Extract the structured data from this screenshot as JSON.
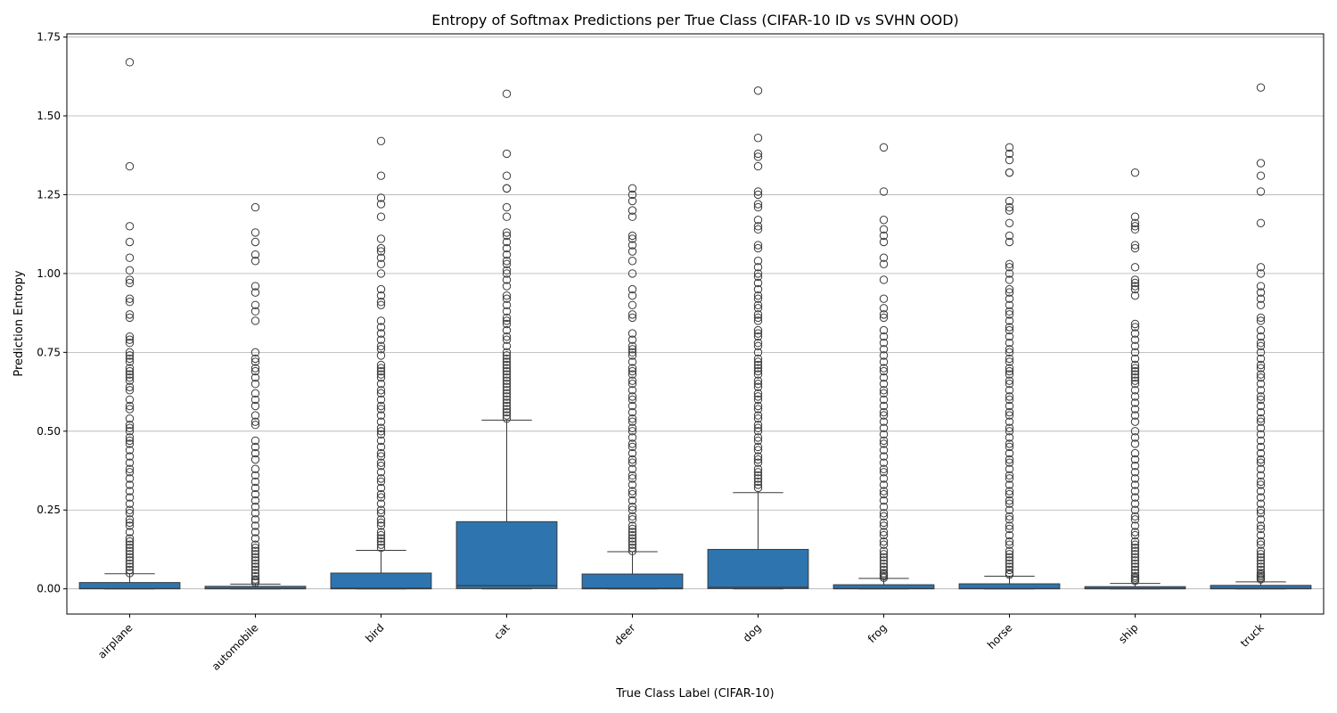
{
  "chart_data": {
    "type": "box",
    "title": "Entropy of Softmax Predictions per True Class (CIFAR-10 ID vs SVHN OOD)",
    "xlabel": "True Class Label (CIFAR-10)",
    "ylabel": "Prediction Entropy",
    "ylim": [
      -0.08,
      1.76
    ],
    "yticks": [
      0.0,
      0.25,
      0.5,
      0.75,
      1.0,
      1.25,
      1.5,
      1.75
    ],
    "ytick_labels": [
      "0.00",
      "0.25",
      "0.50",
      "0.75",
      "1.00",
      "1.25",
      "1.50",
      "1.75"
    ],
    "grid": "horizontal",
    "box_color": "#2e75b0",
    "edge_color": "#3a3a3a",
    "categories": [
      "airplane",
      "automobile",
      "bird",
      "cat",
      "deer",
      "dog",
      "frog",
      "horse",
      "ship",
      "truck"
    ],
    "boxes": [
      {
        "category": "airplane",
        "q1": 0.0,
        "median": 0.001,
        "q3": 0.02,
        "whisker_low": 0.0,
        "whisker_high": 0.048,
        "outliers": [
          1.67,
          1.34,
          1.15,
          1.1,
          1.05,
          1.01,
          0.98,
          0.97,
          0.92,
          0.91,
          0.87,
          0.86,
          0.8,
          0.79,
          0.78,
          0.75,
          0.74,
          0.73,
          0.72,
          0.7,
          0.69,
          0.68,
          0.67,
          0.66,
          0.64,
          0.63,
          0.6,
          0.58,
          0.57,
          0.54,
          0.52,
          0.51,
          0.5,
          0.48,
          0.47,
          0.46,
          0.44,
          0.42,
          0.4,
          0.38,
          0.37,
          0.35,
          0.33,
          0.31,
          0.29,
          0.27,
          0.25,
          0.24,
          0.22,
          0.21,
          0.2,
          0.18,
          0.16,
          0.15,
          0.14,
          0.13,
          0.12,
          0.11,
          0.1,
          0.09,
          0.08,
          0.07,
          0.06,
          0.05
        ]
      },
      {
        "category": "automobile",
        "q1": 0.0,
        "median": 0.001,
        "q3": 0.008,
        "whisker_low": 0.0,
        "whisker_high": 0.015,
        "outliers": [
          1.21,
          1.13,
          1.1,
          1.06,
          1.04,
          0.96,
          0.94,
          0.9,
          0.88,
          0.85,
          0.75,
          0.73,
          0.72,
          0.7,
          0.69,
          0.67,
          0.65,
          0.62,
          0.6,
          0.58,
          0.55,
          0.53,
          0.52,
          0.47,
          0.45,
          0.43,
          0.41,
          0.38,
          0.36,
          0.34,
          0.32,
          0.3,
          0.28,
          0.26,
          0.24,
          0.22,
          0.2,
          0.18,
          0.16,
          0.14,
          0.13,
          0.12,
          0.11,
          0.1,
          0.09,
          0.08,
          0.07,
          0.06,
          0.05,
          0.04,
          0.03,
          0.025,
          0.02
        ]
      },
      {
        "category": "bird",
        "q1": 0.0,
        "median": 0.002,
        "q3": 0.05,
        "whisker_low": 0.0,
        "whisker_high": 0.122,
        "outliers": [
          1.42,
          1.31,
          1.24,
          1.22,
          1.18,
          1.11,
          1.08,
          1.07,
          1.05,
          1.03,
          1.0,
          0.95,
          0.93,
          0.91,
          0.9,
          0.85,
          0.83,
          0.81,
          0.79,
          0.77,
          0.76,
          0.74,
          0.71,
          0.7,
          0.69,
          0.68,
          0.67,
          0.65,
          0.63,
          0.62,
          0.6,
          0.58,
          0.57,
          0.55,
          0.53,
          0.51,
          0.5,
          0.49,
          0.47,
          0.45,
          0.43,
          0.42,
          0.4,
          0.39,
          0.37,
          0.35,
          0.34,
          0.32,
          0.3,
          0.29,
          0.27,
          0.25,
          0.24,
          0.22,
          0.21,
          0.2,
          0.18,
          0.17,
          0.16,
          0.15,
          0.14,
          0.13
        ]
      },
      {
        "category": "cat",
        "q1": 0.001,
        "median": 0.01,
        "q3": 0.213,
        "whisker_low": 0.0,
        "whisker_high": 0.535,
        "outliers": [
          1.57,
          1.38,
          1.31,
          1.27,
          1.27,
          1.21,
          1.18,
          1.13,
          1.12,
          1.1,
          1.08,
          1.06,
          1.04,
          1.03,
          1.01,
          1.0,
          0.98,
          0.96,
          0.93,
          0.92,
          0.9,
          0.88,
          0.86,
          0.85,
          0.84,
          0.82,
          0.8,
          0.79,
          0.77,
          0.75,
          0.74,
          0.73,
          0.72,
          0.71,
          0.7,
          0.69,
          0.68,
          0.67,
          0.66,
          0.65,
          0.64,
          0.63,
          0.62,
          0.61,
          0.6,
          0.59,
          0.58,
          0.57,
          0.56,
          0.55,
          0.54
        ]
      },
      {
        "category": "deer",
        "q1": 0.0,
        "median": 0.002,
        "q3": 0.047,
        "whisker_low": 0.0,
        "whisker_high": 0.118,
        "outliers": [
          1.27,
          1.25,
          1.23,
          1.2,
          1.18,
          1.12,
          1.11,
          1.09,
          1.07,
          1.04,
          1.0,
          0.95,
          0.93,
          0.9,
          0.87,
          0.86,
          0.81,
          0.79,
          0.77,
          0.76,
          0.75,
          0.74,
          0.72,
          0.7,
          0.69,
          0.68,
          0.66,
          0.65,
          0.63,
          0.61,
          0.6,
          0.58,
          0.56,
          0.54,
          0.53,
          0.51,
          0.5,
          0.48,
          0.46,
          0.45,
          0.43,
          0.41,
          0.4,
          0.38,
          0.36,
          0.35,
          0.33,
          0.31,
          0.3,
          0.28,
          0.26,
          0.25,
          0.23,
          0.22,
          0.2,
          0.19,
          0.18,
          0.17,
          0.16,
          0.15,
          0.14,
          0.13,
          0.12
        ]
      },
      {
        "category": "dog",
        "q1": 0.001,
        "median": 0.005,
        "q3": 0.125,
        "whisker_low": 0.0,
        "whisker_high": 0.305,
        "outliers": [
          1.58,
          1.43,
          1.38,
          1.37,
          1.34,
          1.26,
          1.25,
          1.22,
          1.21,
          1.17,
          1.15,
          1.14,
          1.09,
          1.08,
          1.04,
          1.02,
          1.0,
          0.99,
          0.97,
          0.95,
          0.93,
          0.92,
          0.9,
          0.89,
          0.87,
          0.86,
          0.85,
          0.82,
          0.81,
          0.8,
          0.78,
          0.77,
          0.75,
          0.73,
          0.72,
          0.71,
          0.7,
          0.69,
          0.68,
          0.66,
          0.65,
          0.64,
          0.62,
          0.61,
          0.6,
          0.58,
          0.57,
          0.55,
          0.54,
          0.52,
          0.51,
          0.5,
          0.48,
          0.47,
          0.45,
          0.44,
          0.42,
          0.41,
          0.4,
          0.38,
          0.37,
          0.36,
          0.35,
          0.34,
          0.33,
          0.32
        ]
      },
      {
        "category": "frog",
        "q1": 0.0,
        "median": 0.001,
        "q3": 0.013,
        "whisker_low": 0.0,
        "whisker_high": 0.033,
        "outliers": [
          1.4,
          1.26,
          1.17,
          1.14,
          1.12,
          1.1,
          1.05,
          1.03,
          0.98,
          0.92,
          0.89,
          0.87,
          0.86,
          0.82,
          0.8,
          0.78,
          0.76,
          0.74,
          0.72,
          0.7,
          0.69,
          0.67,
          0.65,
          0.63,
          0.62,
          0.6,
          0.58,
          0.56,
          0.55,
          0.53,
          0.51,
          0.49,
          0.47,
          0.46,
          0.44,
          0.42,
          0.4,
          0.38,
          0.37,
          0.35,
          0.33,
          0.31,
          0.3,
          0.28,
          0.26,
          0.24,
          0.23,
          0.21,
          0.2,
          0.18,
          0.17,
          0.15,
          0.14,
          0.12,
          0.11,
          0.1,
          0.09,
          0.08,
          0.07,
          0.06,
          0.05,
          0.045,
          0.04,
          0.035
        ]
      },
      {
        "category": "horse",
        "q1": 0.0,
        "median": 0.001,
        "q3": 0.016,
        "whisker_low": 0.0,
        "whisker_high": 0.04,
        "outliers": [
          1.4,
          1.38,
          1.36,
          1.32,
          1.32,
          1.23,
          1.21,
          1.2,
          1.16,
          1.12,
          1.1,
          1.03,
          1.02,
          1.0,
          0.98,
          0.95,
          0.94,
          0.92,
          0.9,
          0.88,
          0.87,
          0.85,
          0.83,
          0.82,
          0.8,
          0.78,
          0.76,
          0.75,
          0.73,
          0.72,
          0.7,
          0.69,
          0.68,
          0.66,
          0.65,
          0.63,
          0.61,
          0.6,
          0.58,
          0.56,
          0.55,
          0.53,
          0.51,
          0.5,
          0.48,
          0.46,
          0.45,
          0.43,
          0.41,
          0.4,
          0.38,
          0.36,
          0.35,
          0.33,
          0.31,
          0.3,
          0.28,
          0.27,
          0.25,
          0.23,
          0.22,
          0.2,
          0.19,
          0.17,
          0.15,
          0.14,
          0.12,
          0.11,
          0.1,
          0.09,
          0.08,
          0.07,
          0.06,
          0.05,
          0.045
        ]
      },
      {
        "category": "ship",
        "q1": 0.0,
        "median": 0.001,
        "q3": 0.007,
        "whisker_low": 0.0,
        "whisker_high": 0.017,
        "outliers": [
          1.32,
          1.18,
          1.16,
          1.15,
          1.14,
          1.09,
          1.08,
          1.02,
          0.98,
          0.97,
          0.96,
          0.95,
          0.93,
          0.84,
          0.83,
          0.81,
          0.79,
          0.77,
          0.75,
          0.73,
          0.71,
          0.7,
          0.69,
          0.68,
          0.67,
          0.66,
          0.65,
          0.63,
          0.61,
          0.59,
          0.57,
          0.55,
          0.53,
          0.5,
          0.48,
          0.46,
          0.43,
          0.41,
          0.39,
          0.37,
          0.35,
          0.33,
          0.31,
          0.29,
          0.27,
          0.25,
          0.23,
          0.22,
          0.2,
          0.18,
          0.17,
          0.15,
          0.14,
          0.13,
          0.12,
          0.11,
          0.1,
          0.09,
          0.08,
          0.07,
          0.06,
          0.05,
          0.04,
          0.035,
          0.03,
          0.025
        ]
      },
      {
        "category": "truck",
        "q1": 0.0,
        "median": 0.001,
        "q3": 0.011,
        "whisker_low": 0.0,
        "whisker_high": 0.022,
        "outliers": [
          1.59,
          1.35,
          1.31,
          1.26,
          1.16,
          1.02,
          1.0,
          0.96,
          0.94,
          0.92,
          0.9,
          0.86,
          0.85,
          0.82,
          0.8,
          0.78,
          0.77,
          0.75,
          0.73,
          0.71,
          0.7,
          0.68,
          0.67,
          0.65,
          0.63,
          0.61,
          0.6,
          0.58,
          0.56,
          0.54,
          0.53,
          0.51,
          0.49,
          0.47,
          0.45,
          0.43,
          0.41,
          0.4,
          0.38,
          0.36,
          0.34,
          0.33,
          0.31,
          0.29,
          0.27,
          0.25,
          0.24,
          0.22,
          0.2,
          0.19,
          0.17,
          0.15,
          0.14,
          0.12,
          0.11,
          0.1,
          0.09,
          0.08,
          0.07,
          0.06,
          0.05,
          0.045,
          0.04,
          0.035,
          0.03
        ]
      }
    ]
  }
}
